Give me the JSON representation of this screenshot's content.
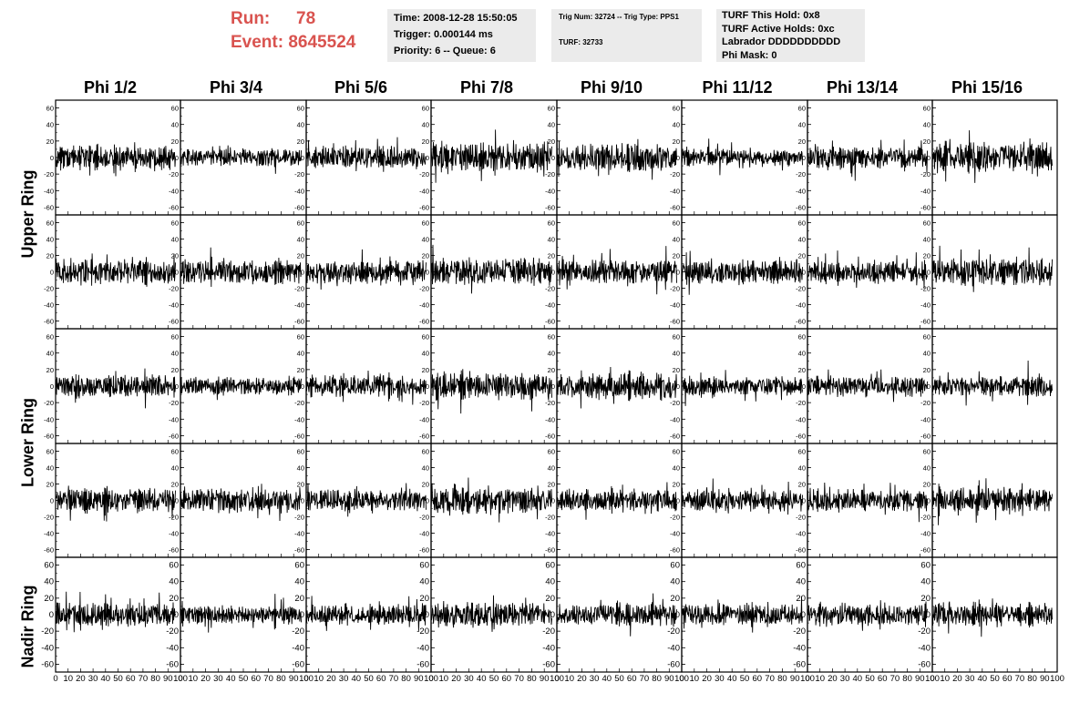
{
  "header": {
    "run_label": "Run:",
    "run_value": "78",
    "event_label": "Event:",
    "event_value": "8645524"
  },
  "info": {
    "time": "Time: 2008-12-28 15:50:05",
    "trigger": "Trigger: 0.000144 ms",
    "priority": "Priority: 6 -- Queue: 6",
    "trig_num": "Trig Num: 32724 -- Trig Type: PPS1",
    "turf": "TURF: 32733",
    "turf_hold": "TURF This Hold: 0x8",
    "turf_active": "TURF Active Holds: 0xc",
    "labrador": "Labrador DDDDDDDDDD",
    "phi_mask": "Phi Mask: 0"
  },
  "columns": [
    "Phi 1/2",
    "Phi 3/4",
    "Phi 5/6",
    "Phi 7/8",
    "Phi 9/10",
    "Phi 11/12",
    "Phi 13/14",
    "Phi 15/16"
  ],
  "rows": [
    "Upper Ring",
    "Upper Ring",
    "Lower Ring",
    "Lower Ring",
    "Nadir Ring"
  ],
  "row_labels": [
    "Upper Ring",
    "Lower Ring",
    "Nadir Ring"
  ],
  "colors": {
    "trace": "#000000",
    "frame": "#000000",
    "title_red": "#d9534f",
    "info_bg": "#ebebeb"
  },
  "chart_data": {
    "type": "line",
    "panels": 40,
    "layout": "5 rows x 8 columns of waveform panels",
    "xlim": [
      0,
      100
    ],
    "ylim": [
      -65,
      65
    ],
    "xticks": [
      0,
      10,
      20,
      30,
      40,
      50,
      60,
      70,
      80,
      90,
      100
    ],
    "xtick_labels": [
      "0",
      "10",
      "20",
      "30",
      "40",
      "50",
      "60",
      "70",
      "80",
      "90",
      "100"
    ],
    "yticks": [
      -60,
      -40,
      -20,
      0,
      20,
      40,
      60
    ],
    "ytick_labels": [
      "-60",
      "-40",
      "-20",
      "0",
      "20",
      "40",
      "60"
    ],
    "x_extent_per_trace": 96,
    "samples_per_trace": 260,
    "typical_amplitude": [
      [
        14,
        11,
        13,
        17,
        17,
        10,
        13,
        18
      ],
      [
        15,
        15,
        14,
        16,
        15,
        14,
        13,
        16
      ],
      [
        13,
        11,
        13,
        16,
        16,
        11,
        12,
        12
      ],
      [
        14,
        15,
        13,
        15,
        13,
        13,
        13,
        15
      ],
      [
        14,
        11,
        12,
        14,
        13,
        13,
        14,
        14
      ]
    ]
  }
}
